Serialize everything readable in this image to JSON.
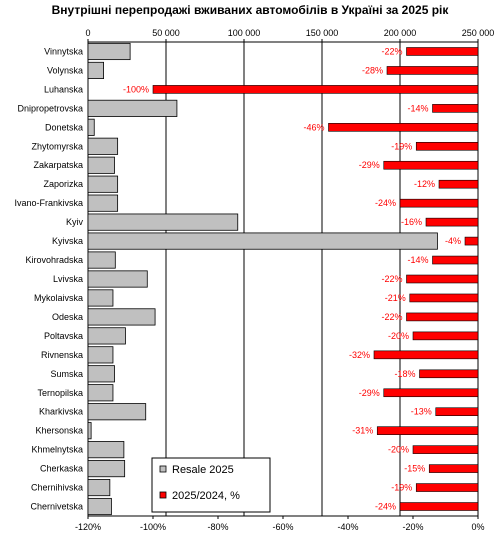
{
  "chart_data": {
    "type": "bar",
    "title": "Внутрішні  перепродажі вживаних автомобілів в Україні за 2025 рік",
    "categories": [
      "Vinnytska",
      "Volynska",
      "Luhanska",
      "Dnipropetrovska",
      "Donetska",
      "Zhytomyrska",
      "Zakarpatska",
      "Zaporizka",
      "Ivano-Frankivska",
      "Kyiv",
      "Kyivska",
      "Kirovohradska",
      "Lvivska",
      "Mykolaivska",
      "Odeska",
      "Poltavska",
      "Rivnenska",
      "Sumska",
      "Ternopilska",
      "Kharkivska",
      "Khersonska",
      "Khmelnytska",
      "Cherkaska",
      "Chernihivska",
      "Chernivetska"
    ],
    "series": [
      {
        "name": "Resale 2025",
        "axis": "top",
        "color": "#c0c0c0",
        "values": [
          27000,
          10000,
          0,
          57000,
          4000,
          19000,
          17000,
          19000,
          19000,
          96000,
          224000,
          17500,
          38000,
          16000,
          43000,
          24000,
          16000,
          17000,
          16000,
          37000,
          2000,
          23000,
          23500,
          14000,
          15000
        ]
      },
      {
        "name": "2025/2024, %",
        "axis": "bottom",
        "color": "#ff0000",
        "values": [
          -22,
          -28,
          -100,
          -14,
          -46,
          -19,
          -29,
          -12,
          -24,
          -16,
          -4,
          -14,
          -22,
          -21,
          -22,
          -20,
          -32,
          -18,
          -29,
          -13,
          -31,
          -20,
          -15,
          -19,
          -24
        ],
        "labels": [
          "-22%",
          "-28%",
          "-100%",
          "-14%",
          "-46%",
          "-19%",
          "-29%",
          "-12%",
          "-24%",
          "-16%",
          "-4%",
          "-14%",
          "-22%",
          "-21%",
          "-22%",
          "-20%",
          "-32%",
          "-18%",
          "-29%",
          "-13%",
          "-31%",
          "-20%",
          "-15%",
          "-19%",
          "-24%"
        ]
      }
    ],
    "top_axis": {
      "min": 0,
      "max": 250000,
      "ticks": [
        0,
        50000,
        100000,
        150000,
        200000,
        250000
      ],
      "tick_labels": [
        "0",
        "50 000",
        "100 000",
        "150 000",
        "200 000",
        "250 000"
      ]
    },
    "bottom_axis": {
      "min": -120,
      "max": 0,
      "ticks": [
        -120,
        -100,
        -80,
        -60,
        -40,
        -20,
        0
      ],
      "tick_labels": [
        "-120%",
        "-100%",
        "-80%",
        "-60%",
        "-40%",
        "-20%",
        "0%"
      ]
    },
    "grid": true,
    "legend_position": "bottom-center"
  }
}
